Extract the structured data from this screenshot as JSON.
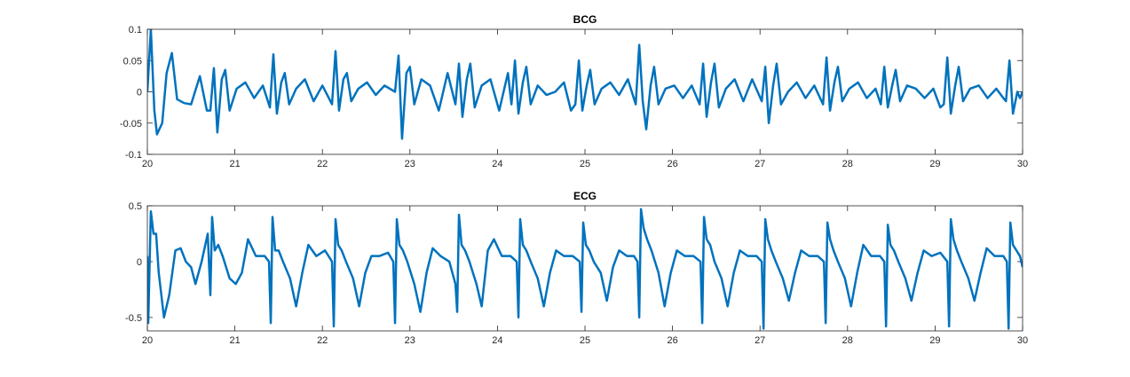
{
  "chart_data": [
    {
      "type": "line",
      "title": "BCG",
      "color": "#0072bd",
      "xlim": [
        20,
        30
      ],
      "xticks": [
        20,
        21,
        22,
        23,
        24,
        25,
        26,
        27,
        28,
        29,
        30
      ],
      "ylim": [
        -0.1,
        0.1
      ],
      "yticks": [
        -0.1,
        -0.05,
        0,
        0.05,
        0.1
      ],
      "x": [
        20.0,
        20.04,
        20.08,
        20.11,
        20.17,
        20.22,
        20.28,
        20.34,
        20.42,
        20.5,
        20.6,
        20.68,
        20.72,
        20.76,
        20.8,
        20.85,
        20.89,
        20.94,
        21.02,
        21.12,
        21.22,
        21.32,
        21.4,
        21.44,
        21.48,
        21.53,
        21.57,
        21.62,
        21.7,
        21.8,
        21.9,
        22.0,
        22.11,
        22.15,
        22.19,
        22.24,
        22.28,
        22.33,
        22.41,
        22.51,
        22.61,
        22.71,
        22.83,
        22.87,
        22.91,
        22.96,
        23.0,
        23.05,
        23.13,
        23.23,
        23.33,
        23.43,
        23.52,
        23.56,
        23.6,
        23.65,
        23.69,
        23.74,
        23.82,
        23.92,
        24.02,
        24.12,
        24.16,
        24.2,
        24.24,
        24.29,
        24.33,
        24.38,
        24.46,
        24.56,
        24.66,
        24.76,
        24.84,
        24.89,
        24.93,
        24.97,
        25.02,
        25.06,
        25.11,
        25.19,
        25.29,
        25.39,
        25.49,
        25.58,
        25.62,
        25.66,
        25.7,
        25.75,
        25.79,
        25.84,
        25.92,
        26.02,
        26.12,
        26.22,
        26.31,
        26.35,
        26.39,
        26.44,
        26.48,
        26.53,
        26.61,
        26.71,
        26.81,
        26.91,
        27.02,
        27.06,
        27.1,
        27.15,
        27.19,
        27.24,
        27.32,
        27.42,
        27.52,
        27.62,
        27.72,
        27.76,
        27.8,
        27.85,
        27.89,
        27.94,
        28.02,
        28.12,
        28.22,
        28.32,
        28.38,
        28.42,
        28.46,
        28.51,
        28.55,
        28.6,
        28.68,
        28.78,
        28.88,
        28.98,
        29.06,
        29.1,
        29.14,
        29.18,
        29.23,
        29.27,
        29.32,
        29.4,
        29.5,
        29.6,
        29.7,
        29.78,
        29.81,
        29.85,
        29.89,
        29.94,
        29.97,
        30.0
      ],
      "values": [
        0,
        0.1,
        -0.03,
        -0.068,
        -0.05,
        0.03,
        0.062,
        -0.012,
        -0.018,
        -0.02,
        0.025,
        -0.03,
        -0.03,
        0.038,
        -0.065,
        0.02,
        0.035,
        -0.03,
        0.005,
        0.015,
        -0.01,
        0.01,
        -0.025,
        0.06,
        -0.035,
        0.015,
        0.03,
        -0.02,
        0.005,
        0.02,
        -0.015,
        0.01,
        -0.02,
        0.065,
        -0.03,
        0.02,
        0.03,
        -0.015,
        0.005,
        0.015,
        -0.005,
        0.01,
        0,
        0.058,
        -0.075,
        0.03,
        0.04,
        -0.02,
        0.02,
        0.01,
        -0.03,
        0.03,
        -0.02,
        0.045,
        -0.04,
        0.02,
        0.045,
        -0.025,
        0.01,
        0.02,
        -0.03,
        0.03,
        -0.02,
        0.05,
        -0.035,
        0.015,
        0.04,
        -0.02,
        0.01,
        -0.005,
        0,
        0.015,
        -0.03,
        -0.02,
        0.05,
        -0.03,
        0.01,
        0.035,
        -0.02,
        0.005,
        0.015,
        -0.005,
        0.02,
        -0.02,
        0.075,
        -0.015,
        -0.06,
        0.01,
        0.04,
        -0.02,
        0.005,
        0.01,
        -0.01,
        0.01,
        -0.02,
        0.045,
        -0.04,
        0.015,
        0.045,
        -0.025,
        0.005,
        0.02,
        -0.015,
        0.02,
        -0.015,
        0.04,
        -0.05,
        0.01,
        0.045,
        -0.02,
        0,
        0.015,
        -0.01,
        0.01,
        -0.02,
        0.055,
        -0.03,
        0.015,
        0.04,
        -0.015,
        0.005,
        0.015,
        -0.01,
        0.005,
        -0.02,
        0.04,
        -0.025,
        0.01,
        0.035,
        -0.015,
        0.01,
        0.005,
        -0.01,
        0.005,
        -0.025,
        -0.02,
        0.055,
        -0.035,
        0.01,
        0.04,
        -0.015,
        0.005,
        0.01,
        -0.01,
        0.005,
        -0.01,
        -0.015,
        0.05,
        -0.035,
        0,
        -0.01,
        0
      ]
    },
    {
      "type": "line",
      "title": "ECG",
      "color": "#0072bd",
      "xlim": [
        20,
        30
      ],
      "xticks": [
        20,
        21,
        22,
        23,
        24,
        25,
        26,
        27,
        28,
        29,
        30
      ],
      "ylim": [
        -0.62,
        0.5
      ],
      "yticks": [
        -0.5,
        0,
        0.5
      ],
      "x": [
        20.0,
        20.01,
        20.04,
        20.07,
        20.1,
        20.13,
        20.19,
        20.25,
        20.32,
        20.38,
        20.44,
        20.5,
        20.55,
        20.62,
        20.69,
        20.72,
        20.74,
        20.77,
        20.81,
        20.86,
        20.94,
        21.01,
        21.08,
        21.15,
        21.24,
        21.34,
        21.39,
        21.41,
        21.43,
        21.46,
        21.5,
        21.55,
        21.63,
        21.7,
        21.77,
        21.84,
        21.93,
        22.03,
        22.11,
        22.13,
        22.15,
        22.18,
        22.22,
        22.27,
        22.35,
        22.42,
        22.49,
        22.56,
        22.65,
        22.75,
        22.81,
        22.83,
        22.85,
        22.88,
        22.92,
        22.97,
        23.05,
        23.12,
        23.19,
        23.26,
        23.35,
        23.45,
        23.52,
        23.54,
        23.56,
        23.59,
        23.63,
        23.68,
        23.76,
        23.82,
        23.89,
        23.96,
        24.05,
        24.15,
        24.22,
        24.24,
        24.26,
        24.29,
        24.33,
        24.38,
        24.46,
        24.53,
        24.6,
        24.67,
        24.76,
        24.86,
        24.94,
        24.96,
        24.98,
        25.01,
        25.05,
        25.1,
        25.18,
        25.25,
        25.32,
        25.39,
        25.48,
        25.56,
        25.6,
        25.62,
        25.64,
        25.67,
        25.71,
        25.76,
        25.84,
        25.91,
        25.98,
        26.05,
        26.14,
        26.24,
        26.32,
        26.34,
        26.36,
        26.39,
        26.43,
        26.48,
        26.56,
        26.63,
        26.7,
        26.77,
        26.86,
        26.96,
        27.02,
        27.04,
        27.06,
        27.09,
        27.13,
        27.18,
        27.26,
        27.33,
        27.4,
        27.47,
        27.56,
        27.66,
        27.73,
        27.75,
        27.77,
        27.8,
        27.84,
        27.89,
        27.97,
        28.04,
        28.11,
        28.18,
        28.27,
        28.37,
        28.42,
        28.44,
        28.46,
        28.49,
        28.53,
        28.58,
        28.66,
        28.73,
        28.8,
        28.87,
        28.96,
        29.06,
        29.14,
        29.16,
        29.18,
        29.21,
        29.25,
        29.3,
        29.38,
        29.45,
        29.52,
        29.59,
        29.68,
        29.78,
        29.82,
        29.84,
        29.86,
        29.89,
        29.93,
        29.97,
        30.0
      ],
      "values": [
        0.05,
        -0.55,
        0.45,
        0.25,
        0.25,
        -0.1,
        -0.5,
        -0.3,
        0.1,
        0.12,
        0,
        -0.05,
        -0.2,
        0,
        0.25,
        -0.3,
        0.4,
        0.1,
        0.15,
        0.05,
        -0.15,
        -0.2,
        -0.1,
        0.2,
        0.05,
        0.05,
        0,
        -0.55,
        0.4,
        0.1,
        0.1,
        0,
        -0.15,
        -0.4,
        -0.1,
        0.15,
        0.05,
        0.1,
        0,
        -0.58,
        0.38,
        0.15,
        0.1,
        0,
        -0.15,
        -0.4,
        -0.1,
        0.05,
        0.05,
        0.08,
        0,
        -0.55,
        0.38,
        0.15,
        0.1,
        0,
        -0.2,
        -0.45,
        -0.1,
        0.12,
        0.05,
        0,
        -0.2,
        -0.45,
        0.42,
        0.15,
        0.1,
        0,
        -0.2,
        -0.4,
        0.1,
        0.2,
        0.05,
        0.05,
        0,
        -0.5,
        0.38,
        0.15,
        0.1,
        0,
        -0.15,
        -0.4,
        -0.1,
        0.1,
        0.05,
        0.05,
        0,
        -0.45,
        0.35,
        0.15,
        0.1,
        0,
        -0.1,
        -0.35,
        -0.05,
        0.1,
        0.05,
        0.05,
        0,
        -0.5,
        0.47,
        0.3,
        0.2,
        0.1,
        -0.1,
        -0.4,
        -0.1,
        0.1,
        0.05,
        0.05,
        0,
        -0.55,
        0.4,
        0.2,
        0.15,
        0,
        -0.15,
        -0.4,
        -0.1,
        0.1,
        0.05,
        0.05,
        0,
        -0.6,
        0.38,
        0.2,
        0.1,
        0,
        -0.15,
        -0.35,
        -0.1,
        0.1,
        0.05,
        0.05,
        0,
        -0.55,
        0.35,
        0.2,
        0.1,
        0,
        -0.15,
        -0.4,
        -0.1,
        0.15,
        0.05,
        0.05,
        0,
        -0.58,
        0.33,
        0.15,
        0.1,
        0,
        -0.15,
        -0.35,
        -0.1,
        0.1,
        0.05,
        0.08,
        0,
        -0.58,
        0.38,
        0.2,
        0.1,
        0,
        -0.15,
        -0.35,
        -0.1,
        0.12,
        0.05,
        0.05,
        0,
        -0.6,
        0.35,
        0.15,
        0.1,
        0.05,
        -0.05
      ]
    }
  ]
}
